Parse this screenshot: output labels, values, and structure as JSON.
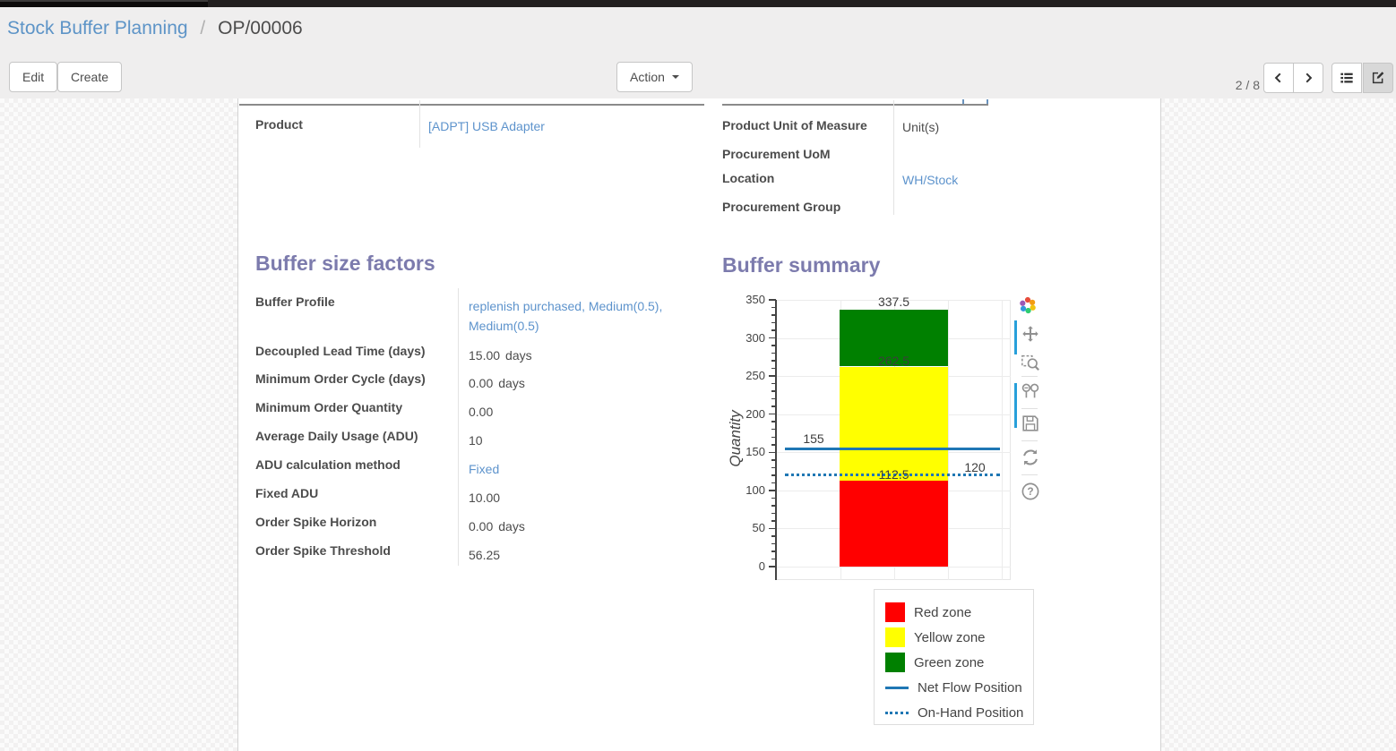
{
  "breadcrumb": {
    "parent": "Stock Buffer Planning",
    "separator": "/",
    "current": "OP/00006"
  },
  "toolbar": {
    "edit_label": "Edit",
    "create_label": "Create",
    "action_label": "Action",
    "pager": "2 / 8"
  },
  "form": {
    "fields_left": [
      {
        "label": "Product",
        "value": "[ADPT] USB Adapter",
        "link": true
      }
    ],
    "fields_right": [
      {
        "label": "Product Unit of Measure",
        "value": "Unit(s)",
        "link": false
      },
      {
        "label": "Procurement UoM",
        "value": "",
        "link": false
      },
      {
        "label": "Location",
        "value": "WH/Stock",
        "link": true
      },
      {
        "label": "Procurement Group",
        "value": "",
        "link": false
      }
    ],
    "buffer_factors": {
      "title": "Buffer size factors",
      "rows": [
        {
          "label": "Buffer Profile",
          "value": "replenish purchased, Medium(0.5), Medium(0.5)",
          "link": true
        },
        {
          "label": "Decoupled Lead Time (days)",
          "value": "15.00",
          "unit": "days"
        },
        {
          "label": "Minimum Order Cycle (days)",
          "value": "0.00",
          "unit": "days"
        },
        {
          "label": "Minimum Order Quantity",
          "value": "0.00"
        },
        {
          "label": "Average Daily Usage (ADU)",
          "value": "10"
        },
        {
          "label": "ADU calculation method",
          "value": "Fixed",
          "link": true
        },
        {
          "label": "Fixed ADU",
          "value": "10.00"
        },
        {
          "label": "Order Spike Horizon",
          "value": "0.00",
          "unit": "days"
        },
        {
          "label": "Order Spike Threshold",
          "value": "56.25"
        }
      ]
    },
    "buffer_summary": {
      "title": "Buffer summary"
    }
  },
  "chart_data": {
    "type": "bar",
    "title": "Buffer summary",
    "ylabel": "Quantity",
    "ylim": [
      0,
      350
    ],
    "ytick_step": 50,
    "minor_tick_step": 10,
    "grid": true,
    "zones": [
      {
        "name": "Red zone",
        "from": 0,
        "to": 112.5,
        "color": "#ff0000"
      },
      {
        "name": "Yellow zone",
        "from": 112.5,
        "to": 262.5,
        "color": "#ffff00"
      },
      {
        "name": "Green zone",
        "from": 262.5,
        "to": 337.5,
        "color": "#008000"
      }
    ],
    "lines": [
      {
        "name": "Net Flow Position",
        "value": 155,
        "style": "solid",
        "color": "#1f77b4"
      },
      {
        "name": "On-Hand Position",
        "value": 120,
        "style": "dotted",
        "color": "#1f77b4"
      }
    ],
    "annotations": [
      {
        "text": "337.5",
        "value": 337.5,
        "anchor": "bar",
        "dy": -17
      },
      {
        "text": "262.5",
        "value": 262.5,
        "anchor": "bar",
        "dy": -15
      },
      {
        "text": "112.5",
        "value": 112.5,
        "anchor": "bar",
        "dy": -15
      },
      {
        "text": "155",
        "value": 155,
        "anchor": "left",
        "dy": -19
      },
      {
        "text": "120",
        "value": 120,
        "anchor": "right",
        "dy": -17
      }
    ],
    "legend": [
      "Red zone",
      "Yellow zone",
      "Green zone",
      "Net Flow Position",
      "On-Hand Position"
    ],
    "legend_position": "bottom-right"
  }
}
